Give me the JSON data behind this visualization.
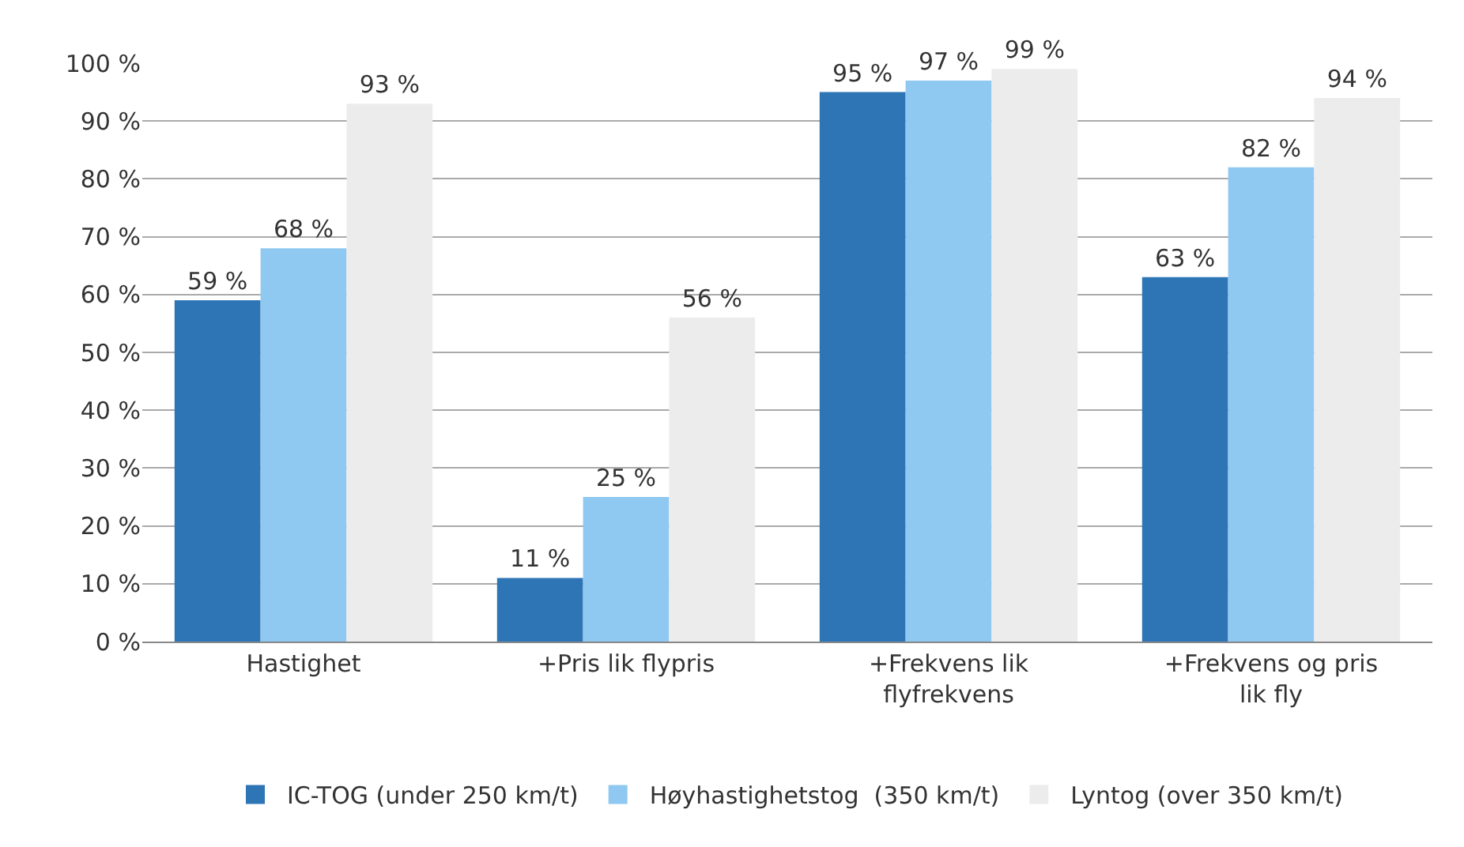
{
  "chart_data": {
    "type": "bar",
    "categories": [
      "Hastighet",
      "+Pris lik flypris",
      "+Frekvens lik flyfrekvens",
      "+Frekvens og pris lik fly"
    ],
    "series": [
      {
        "name": "IC-TOG (under 250 km/t)",
        "color": "#2e75b6",
        "values": [
          59,
          11,
          95,
          63
        ],
        "value_labels": [
          "59 %",
          "11 %",
          "95 %",
          "63 %"
        ]
      },
      {
        "name": "Høyhastighetstog  (350 km/t)",
        "color": "#8fc8f0",
        "values": [
          68,
          25,
          97,
          82
        ],
        "value_labels": [
          "68 %",
          "25 %",
          "97 %",
          "82 %"
        ]
      },
      {
        "name": "Lyntog (over 350 km/t)",
        "color": "#ececec",
        "values": [
          93,
          56,
          99,
          94
        ],
        "value_labels": [
          "93 %",
          "56 %",
          "99 %",
          "94 %"
        ]
      }
    ],
    "ylim": [
      0,
      100
    ],
    "yticks": [
      {
        "value": 0,
        "label": "0 %"
      },
      {
        "value": 10,
        "label": "10 %"
      },
      {
        "value": 20,
        "label": "20 %"
      },
      {
        "value": 30,
        "label": "30 %"
      },
      {
        "value": 40,
        "label": "40 %"
      },
      {
        "value": 50,
        "label": "50 %"
      },
      {
        "value": 60,
        "label": "60 %"
      },
      {
        "value": 70,
        "label": "70 %"
      },
      {
        "value": 80,
        "label": "80 %"
      },
      {
        "value": 90,
        "label": "90 %"
      },
      {
        "value": 100,
        "label": "100 %"
      }
    ],
    "grid": "y",
    "legend": "bottom"
  }
}
